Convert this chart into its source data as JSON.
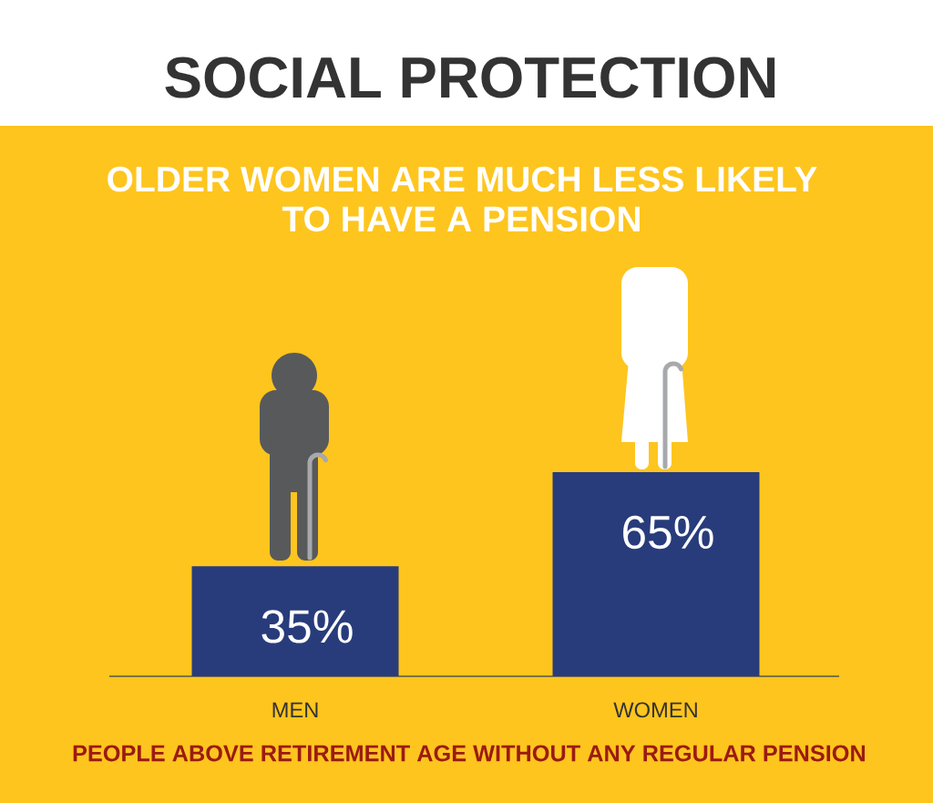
{
  "chart_data": {
    "type": "bar",
    "title": "SOCIAL PROTECTION",
    "subtitle": "OLDER WOMEN ARE MUCH LESS LIKELY TO HAVE A PENSION",
    "xlabel": "PEOPLE ABOVE RETIREMENT AGE WITHOUT ANY REGULAR PENSION",
    "categories": [
      "MEN",
      "WOMEN"
    ],
    "values": [
      35,
      65
    ],
    "value_labels": [
      "35%",
      "65%"
    ],
    "color": "#283c7b"
  }
}
